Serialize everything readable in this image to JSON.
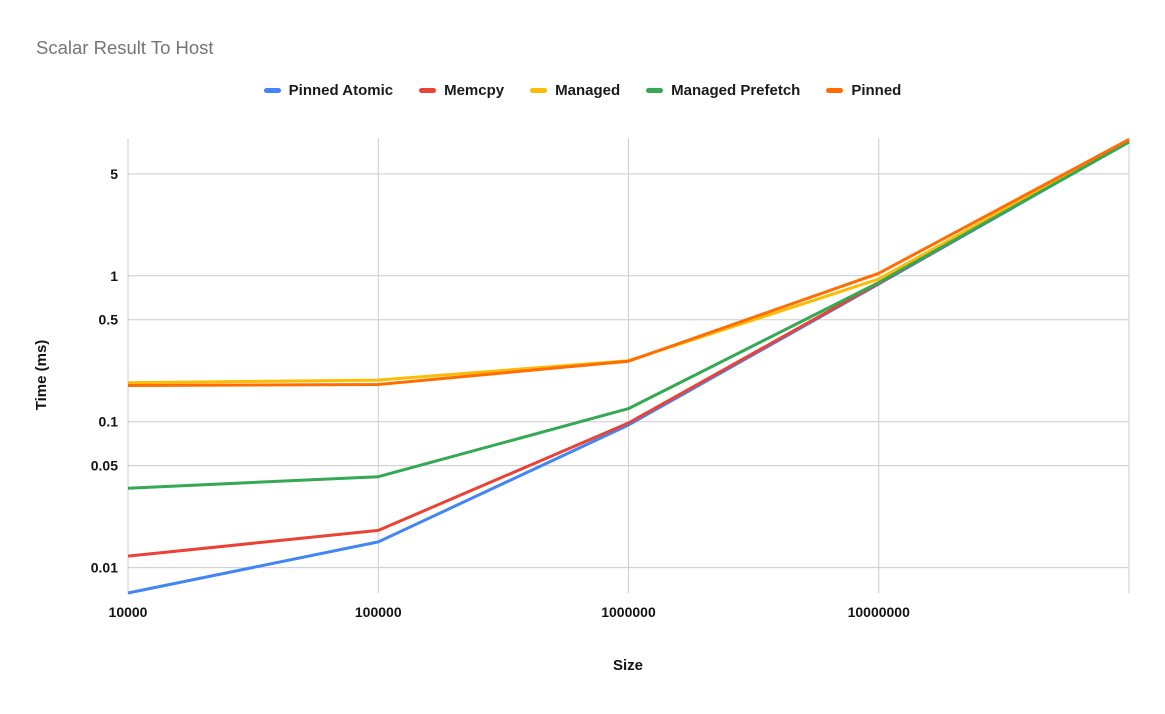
{
  "chart_data": {
    "type": "line",
    "title": "Scalar Result To Host",
    "xlabel": "Size",
    "ylabel": "Time (ms)",
    "x_scale": "log",
    "y_scale": "log",
    "grid": true,
    "legend_position": "top",
    "x": [
      10000,
      100000,
      1000000,
      10000000,
      100000000
    ],
    "x_ticks": [
      10000,
      100000,
      1000000,
      10000000
    ],
    "x_tick_labels": [
      "10000",
      "100000",
      "1000000",
      "10000000"
    ],
    "y_ticks": [
      5,
      1,
      0.5,
      0.1,
      0.05,
      0.01
    ],
    "y_tick_labels": [
      "5",
      "1",
      "0.5",
      "0.1",
      "0.05",
      "0.01"
    ],
    "xlim": [
      10000,
      100000000
    ],
    "ylim": [
      0.0067,
      8.8
    ],
    "series": [
      {
        "name": "Pinned Atomic",
        "color": "#4285f4",
        "values": [
          0.0067,
          0.015,
          0.095,
          0.88,
          8.3
        ]
      },
      {
        "name": "Memcpy",
        "color": "#ea4335",
        "values": [
          0.012,
          0.018,
          0.098,
          0.89,
          8.35
        ]
      },
      {
        "name": "Managed",
        "color": "#fbbc04",
        "values": [
          0.185,
          0.193,
          0.262,
          0.95,
          8.45
        ]
      },
      {
        "name": "Managed Prefetch",
        "color": "#34a853",
        "values": [
          0.035,
          0.042,
          0.123,
          0.9,
          8.25
        ]
      },
      {
        "name": "Pinned",
        "color": "#ff6d01",
        "values": [
          0.177,
          0.18,
          0.26,
          1.04,
          8.6
        ]
      }
    ],
    "colors": {
      "grid": "#cccccc",
      "title_text": "#757575",
      "axis_text": "#131313",
      "background": "#ffffff"
    }
  }
}
